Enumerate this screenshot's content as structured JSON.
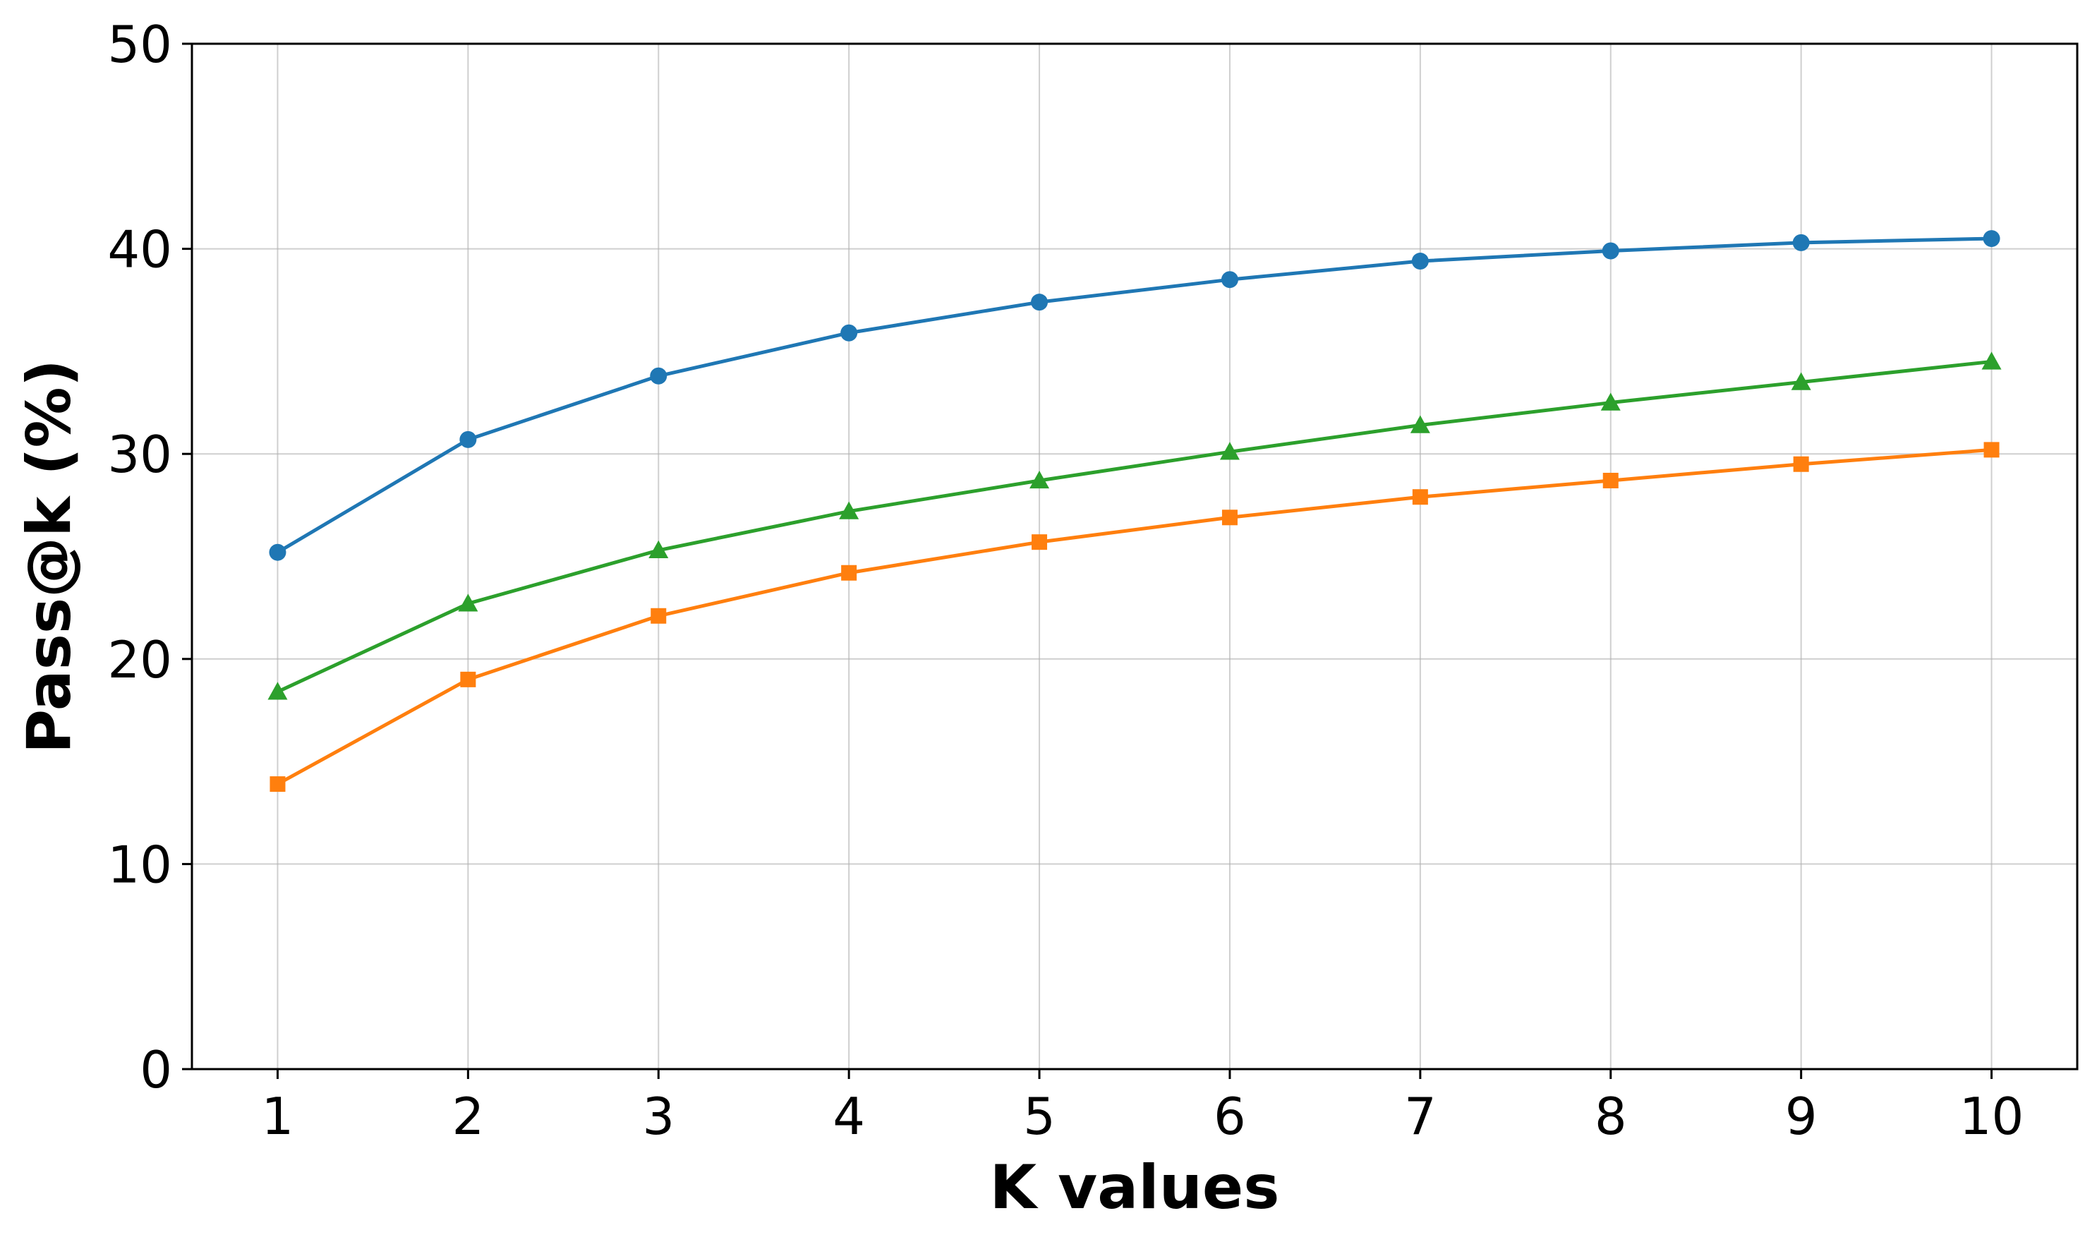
{
  "chart_data": {
    "type": "line",
    "title": "",
    "xlabel": "K values",
    "ylabel": "Pass@k (%)",
    "x": [
      1,
      2,
      3,
      4,
      5,
      6,
      7,
      8,
      9,
      10
    ],
    "xlim": [
      0.55,
      10.45
    ],
    "ylim": [
      0,
      50
    ],
    "xticks": [
      1,
      2,
      3,
      4,
      5,
      6,
      7,
      8,
      9,
      10
    ],
    "yticks": [
      0,
      10,
      20,
      30,
      40,
      50
    ],
    "grid": true,
    "legend": "none",
    "series": [
      {
        "color": "#1f77b4",
        "marker": "circle",
        "values": [
          25.2,
          30.7,
          33.8,
          35.9,
          37.4,
          38.5,
          39.4,
          39.9,
          40.3,
          40.5
        ]
      },
      {
        "color": "#2ca02c",
        "marker": "triangle",
        "values": [
          18.4,
          22.7,
          25.3,
          27.2,
          28.7,
          30.1,
          31.4,
          32.5,
          33.5,
          34.5
        ]
      },
      {
        "color": "#ff7f0e",
        "marker": "square",
        "values": [
          13.9,
          19.0,
          22.1,
          24.2,
          25.7,
          26.9,
          27.9,
          28.7,
          29.5,
          30.2
        ]
      }
    ]
  }
}
